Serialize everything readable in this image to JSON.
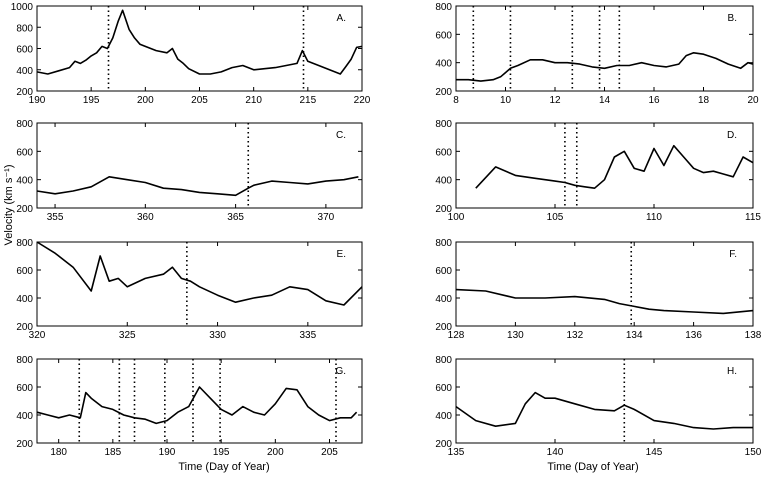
{
  "figure": {
    "ylabel": "Velocity (km s⁻¹)",
    "xlabel_left": "Time (Day of Year)",
    "xlabel_right": "Time (Day of Year)"
  },
  "chart_data": [
    {
      "type": "line",
      "label": "A.",
      "xlim": [
        190,
        220
      ],
      "ylim": [
        200,
        1000
      ],
      "xticks": [
        190,
        195,
        200,
        205,
        210,
        215,
        220
      ],
      "yticks": [
        200,
        400,
        600,
        800,
        1000
      ],
      "vlines": [
        196.6,
        214.6
      ],
      "x": [
        190,
        191,
        192,
        193,
        193.5,
        194,
        194.5,
        195,
        195.5,
        196,
        196.5,
        197,
        197.5,
        197.9,
        198.5,
        199,
        199.5,
        200,
        201,
        202,
        202.5,
        203,
        203.5,
        204,
        205,
        206,
        207,
        208,
        209,
        210,
        211,
        212,
        213,
        214,
        214.5,
        215,
        216,
        217,
        218,
        218.5,
        219,
        219.5,
        220
      ],
      "y": [
        380,
        360,
        390,
        420,
        480,
        460,
        490,
        530,
        560,
        620,
        600,
        700,
        860,
        960,
        780,
        700,
        640,
        620,
        580,
        560,
        600,
        500,
        460,
        410,
        360,
        360,
        380,
        420,
        440,
        400,
        410,
        420,
        440,
        460,
        580,
        480,
        440,
        400,
        360,
        430,
        500,
        610,
        620
      ]
    },
    {
      "type": "line",
      "label": "B.",
      "xlim": [
        8,
        20
      ],
      "ylim": [
        200,
        800
      ],
      "xticks": [
        8,
        10,
        12,
        14,
        16,
        18,
        20
      ],
      "yticks": [
        200,
        400,
        600,
        800
      ],
      "vlines": [
        8.7,
        10.2,
        12.7,
        13.8,
        14.6
      ],
      "x": [
        8,
        8.5,
        9,
        9.5,
        9.8,
        10,
        10.2,
        10.5,
        11,
        11.5,
        12,
        12.5,
        13,
        13.5,
        14,
        14.5,
        15,
        15.5,
        16,
        16.5,
        17,
        17.3,
        17.6,
        18,
        18.5,
        19,
        19.5,
        19.8,
        20
      ],
      "y": [
        280,
        280,
        270,
        280,
        300,
        330,
        360,
        380,
        420,
        420,
        400,
        400,
        390,
        370,
        360,
        380,
        380,
        400,
        380,
        370,
        390,
        450,
        470,
        460,
        430,
        390,
        360,
        400,
        390
      ]
    },
    {
      "type": "line",
      "label": "C.",
      "xlim": [
        354,
        372
      ],
      "ylim": [
        200,
        800
      ],
      "xticks": [
        355,
        360,
        365,
        370
      ],
      "yticks": [
        200,
        400,
        600,
        800
      ],
      "vlines": [
        365.7
      ],
      "x": [
        354,
        355,
        356,
        357,
        358,
        359,
        360,
        361,
        362,
        363,
        364,
        365,
        365.7,
        366,
        367,
        368,
        369,
        370,
        371,
        371.8
      ],
      "y": [
        320,
        300,
        320,
        350,
        420,
        400,
        380,
        340,
        330,
        310,
        300,
        290,
        340,
        360,
        390,
        380,
        370,
        390,
        400,
        420
      ]
    },
    {
      "type": "line",
      "label": "D.",
      "xlim": [
        100,
        115
      ],
      "ylim": [
        200,
        800
      ],
      "xticks": [
        100,
        105,
        110,
        115
      ],
      "yticks": [
        200,
        400,
        600,
        800
      ],
      "vlines": [
        105.5,
        106.1
      ],
      "x": [
        101,
        102,
        103,
        104,
        105,
        105.5,
        106,
        106.5,
        107,
        107.5,
        108,
        108.5,
        109,
        109.5,
        110,
        110.5,
        111,
        111.5,
        112,
        112.5,
        113,
        113.5,
        114,
        114.5,
        115
      ],
      "y": [
        340,
        490,
        430,
        410,
        390,
        380,
        360,
        350,
        340,
        400,
        560,
        600,
        480,
        460,
        620,
        500,
        640,
        560,
        480,
        450,
        460,
        440,
        420,
        560,
        520
      ]
    },
    {
      "type": "line",
      "label": "E.",
      "xlim": [
        320,
        338
      ],
      "ylim": [
        200,
        800
      ],
      "xticks": [
        320,
        325,
        330,
        335
      ],
      "yticks": [
        200,
        400,
        600,
        800
      ],
      "vlines": [
        328.3
      ],
      "x": [
        320,
        321,
        322,
        323,
        323.5,
        324,
        324.5,
        325,
        326,
        327,
        327.5,
        328,
        328.5,
        329,
        330,
        331,
        332,
        333,
        334,
        335,
        336,
        337,
        338
      ],
      "y": [
        800,
        720,
        620,
        450,
        700,
        520,
        540,
        480,
        540,
        570,
        620,
        540,
        520,
        480,
        420,
        370,
        400,
        420,
        480,
        460,
        380,
        350,
        480
      ]
    },
    {
      "type": "line",
      "label": "F.",
      "xlim": [
        128,
        138
      ],
      "ylim": [
        200,
        800
      ],
      "xticks": [
        128,
        130,
        132,
        134,
        136,
        138
      ],
      "yticks": [
        200,
        400,
        600,
        800
      ],
      "vlines": [
        133.9
      ],
      "x": [
        128,
        129,
        130,
        131,
        132,
        133,
        133.5,
        134,
        134.5,
        135,
        136,
        137,
        138
      ],
      "y": [
        460,
        450,
        400,
        400,
        410,
        390,
        360,
        340,
        320,
        310,
        300,
        290,
        310
      ]
    },
    {
      "type": "line",
      "label": "G.",
      "xlim": [
        178,
        208
      ],
      "ylim": [
        200,
        800
      ],
      "xticks": [
        180,
        185,
        190,
        195,
        200,
        205
      ],
      "yticks": [
        200,
        400,
        600,
        800
      ],
      "vlines": [
        181.9,
        185.6,
        187.0,
        189.8,
        192.4,
        194.9,
        205.6
      ],
      "x": [
        178,
        179,
        180,
        181,
        182,
        182.5,
        183,
        184,
        185,
        186,
        187,
        188,
        189,
        190,
        191,
        192,
        193,
        194,
        195,
        196,
        197,
        198,
        199,
        200,
        201,
        202,
        203,
        204,
        205,
        206,
        207,
        207.5
      ],
      "y": [
        420,
        400,
        380,
        400,
        380,
        560,
        520,
        460,
        440,
        400,
        380,
        370,
        340,
        360,
        420,
        460,
        600,
        520,
        440,
        400,
        460,
        420,
        400,
        480,
        590,
        580,
        460,
        400,
        360,
        380,
        380,
        420
      ]
    },
    {
      "type": "line",
      "label": "H.",
      "xlim": [
        135,
        150
      ],
      "ylim": [
        200,
        800
      ],
      "xticks": [
        135,
        140,
        145,
        150
      ],
      "yticks": [
        200,
        400,
        600,
        800
      ],
      "vlines": [
        143.5
      ],
      "x": [
        135,
        136,
        137,
        138,
        138.5,
        139,
        139.5,
        140,
        141,
        142,
        143,
        143.5,
        144,
        145,
        146,
        147,
        148,
        149,
        150
      ],
      "y": [
        460,
        360,
        320,
        340,
        480,
        560,
        520,
        520,
        480,
        440,
        430,
        470,
        440,
        360,
        340,
        310,
        300,
        310,
        310
      ]
    }
  ]
}
